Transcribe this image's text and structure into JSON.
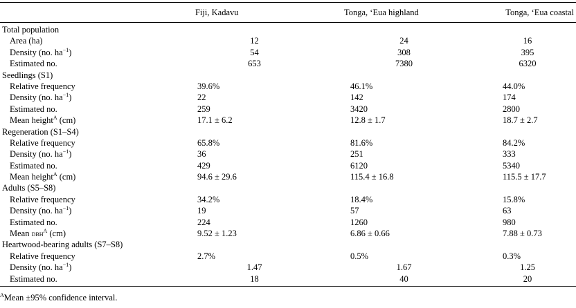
{
  "headers": [
    "",
    "Fiji, Kadavu",
    "Tonga, ‘Eua highland",
    "Tonga, ‘Eua coastal"
  ],
  "rows": [
    {
      "type": "section",
      "label": "Total population"
    },
    {
      "type": "data",
      "align": "center",
      "label_pre": "Area (ha)",
      "sup": "",
      "label_post": "",
      "values": [
        "12",
        "24",
        "16"
      ]
    },
    {
      "type": "data",
      "align": "center",
      "label_pre": "Density (no. ha",
      "sup": "−1",
      "label_post": ")",
      "values": [
        "54",
        "308",
        "395"
      ]
    },
    {
      "type": "data",
      "align": "center",
      "label_pre": "Estimated no.",
      "sup": "",
      "label_post": "",
      "values": [
        "653",
        "7380",
        "6320"
      ]
    },
    {
      "type": "section",
      "label": "Seedlings (S1)"
    },
    {
      "type": "data",
      "align": "right",
      "label_pre": "Relative frequency",
      "sup": "",
      "label_post": "",
      "values": [
        "39.6%",
        "46.1%",
        "44.0%"
      ]
    },
    {
      "type": "data",
      "align": "left",
      "label_pre": "Density (no. ha",
      "sup": "−1",
      "label_post": ")",
      "values": [
        "22",
        "142",
        "174"
      ]
    },
    {
      "type": "data",
      "align": "left",
      "label_pre": "Estimated no.",
      "sup": "",
      "label_post": "",
      "values": [
        "259",
        "3420",
        "2800"
      ]
    },
    {
      "type": "data",
      "align": "left",
      "label_pre": "Mean height",
      "sup": "A",
      "label_post": " (cm)",
      "values": [
        "17.1 ± 6.2",
        "12.8 ± 1.7",
        "18.7 ± 2.7"
      ]
    },
    {
      "type": "section",
      "label": "Regeneration (S1–S4)"
    },
    {
      "type": "data",
      "align": "right",
      "label_pre": "Relative frequency",
      "sup": "",
      "label_post": "",
      "values": [
        "65.8%",
        "81.6%",
        "84.2%"
      ]
    },
    {
      "type": "data",
      "align": "left",
      "label_pre": "Density (no. ha",
      "sup": "−1",
      "label_post": ")",
      "values": [
        "36",
        "251",
        "333"
      ]
    },
    {
      "type": "data",
      "align": "left",
      "label_pre": "Estimated no.",
      "sup": "",
      "label_post": "",
      "values": [
        "429",
        "6120",
        "5340"
      ]
    },
    {
      "type": "data",
      "align": "left",
      "label_pre": "Mean height",
      "sup": "A",
      "label_post": " (cm)",
      "values": [
        "94.6 ± 29.6",
        "115.4 ± 16.8",
        "115.5 ± 17.7"
      ]
    },
    {
      "type": "section",
      "label": "Adults (S5–S8)"
    },
    {
      "type": "data",
      "align": "right",
      "label_pre": "Relative frequency",
      "sup": "",
      "label_post": "",
      "values": [
        "34.2%",
        "18.4%",
        "15.8%"
      ]
    },
    {
      "type": "data",
      "align": "left",
      "label_pre": "Density (no. ha",
      "sup": "−1",
      "label_post": ")",
      "values": [
        "19",
        "57",
        "63"
      ]
    },
    {
      "type": "data",
      "align": "left",
      "label_pre": "Estimated no.",
      "sup": "",
      "label_post": "",
      "values": [
        "224",
        "1260",
        "980"
      ]
    },
    {
      "type": "data",
      "align": "left",
      "label_pre": "Mean ",
      "sc": "dbh",
      "sup": "A",
      "label_post": " (cm)",
      "values": [
        "9.52 ± 1.23",
        "6.86 ± 0.66",
        "7.88 ± 0.73"
      ]
    },
    {
      "type": "section",
      "label": "Heartwood-bearing adults (S7–S8)"
    },
    {
      "type": "data",
      "align": "right",
      "label_pre": "Relative frequency",
      "sup": "",
      "label_post": "",
      "values": [
        "2.7%",
        "0.5%",
        "0.3%"
      ]
    },
    {
      "type": "data",
      "align": "center",
      "label_pre": "Density (no. ha",
      "sup": "−1",
      "label_post": ")",
      "values": [
        "1.47",
        "1.67",
        "1.25"
      ]
    },
    {
      "type": "data",
      "align": "center",
      "label_pre": "Estimated no.",
      "sup": "",
      "label_post": "",
      "values": [
        "18",
        "40",
        "20"
      ]
    }
  ],
  "footnote": {
    "marker": "A",
    "text": "Mean ±95% confidence interval."
  }
}
